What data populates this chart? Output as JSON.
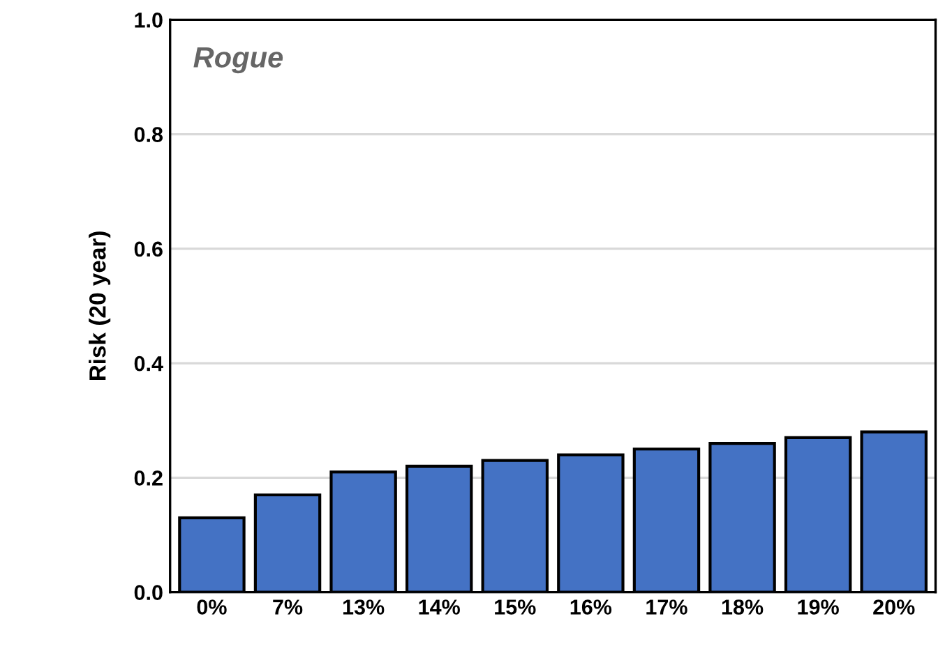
{
  "chart_data": {
    "type": "bar",
    "ylabel": "Risk (20 year)",
    "annotations": [
      "Rogue"
    ],
    "categories": [
      "0%",
      "7%",
      "13%",
      "14%",
      "15%",
      "16%",
      "17%",
      "18%",
      "19%",
      "20%"
    ],
    "values": [
      0.13,
      0.17,
      0.21,
      0.22,
      0.23,
      0.24,
      0.25,
      0.26,
      0.27,
      0.28
    ],
    "color": "#4472c4",
    "ylim": [
      0,
      1
    ],
    "yticks": [
      {
        "value": 0,
        "label": "0.0"
      },
      {
        "value": 0.2,
        "label": "0.2"
      },
      {
        "value": 0.4,
        "label": "0.4"
      },
      {
        "value": 0.6,
        "label": "0.6"
      },
      {
        "value": 0.8,
        "label": "0.8"
      },
      {
        "value": 1,
        "label": "1.0"
      }
    ],
    "grid": "y"
  }
}
